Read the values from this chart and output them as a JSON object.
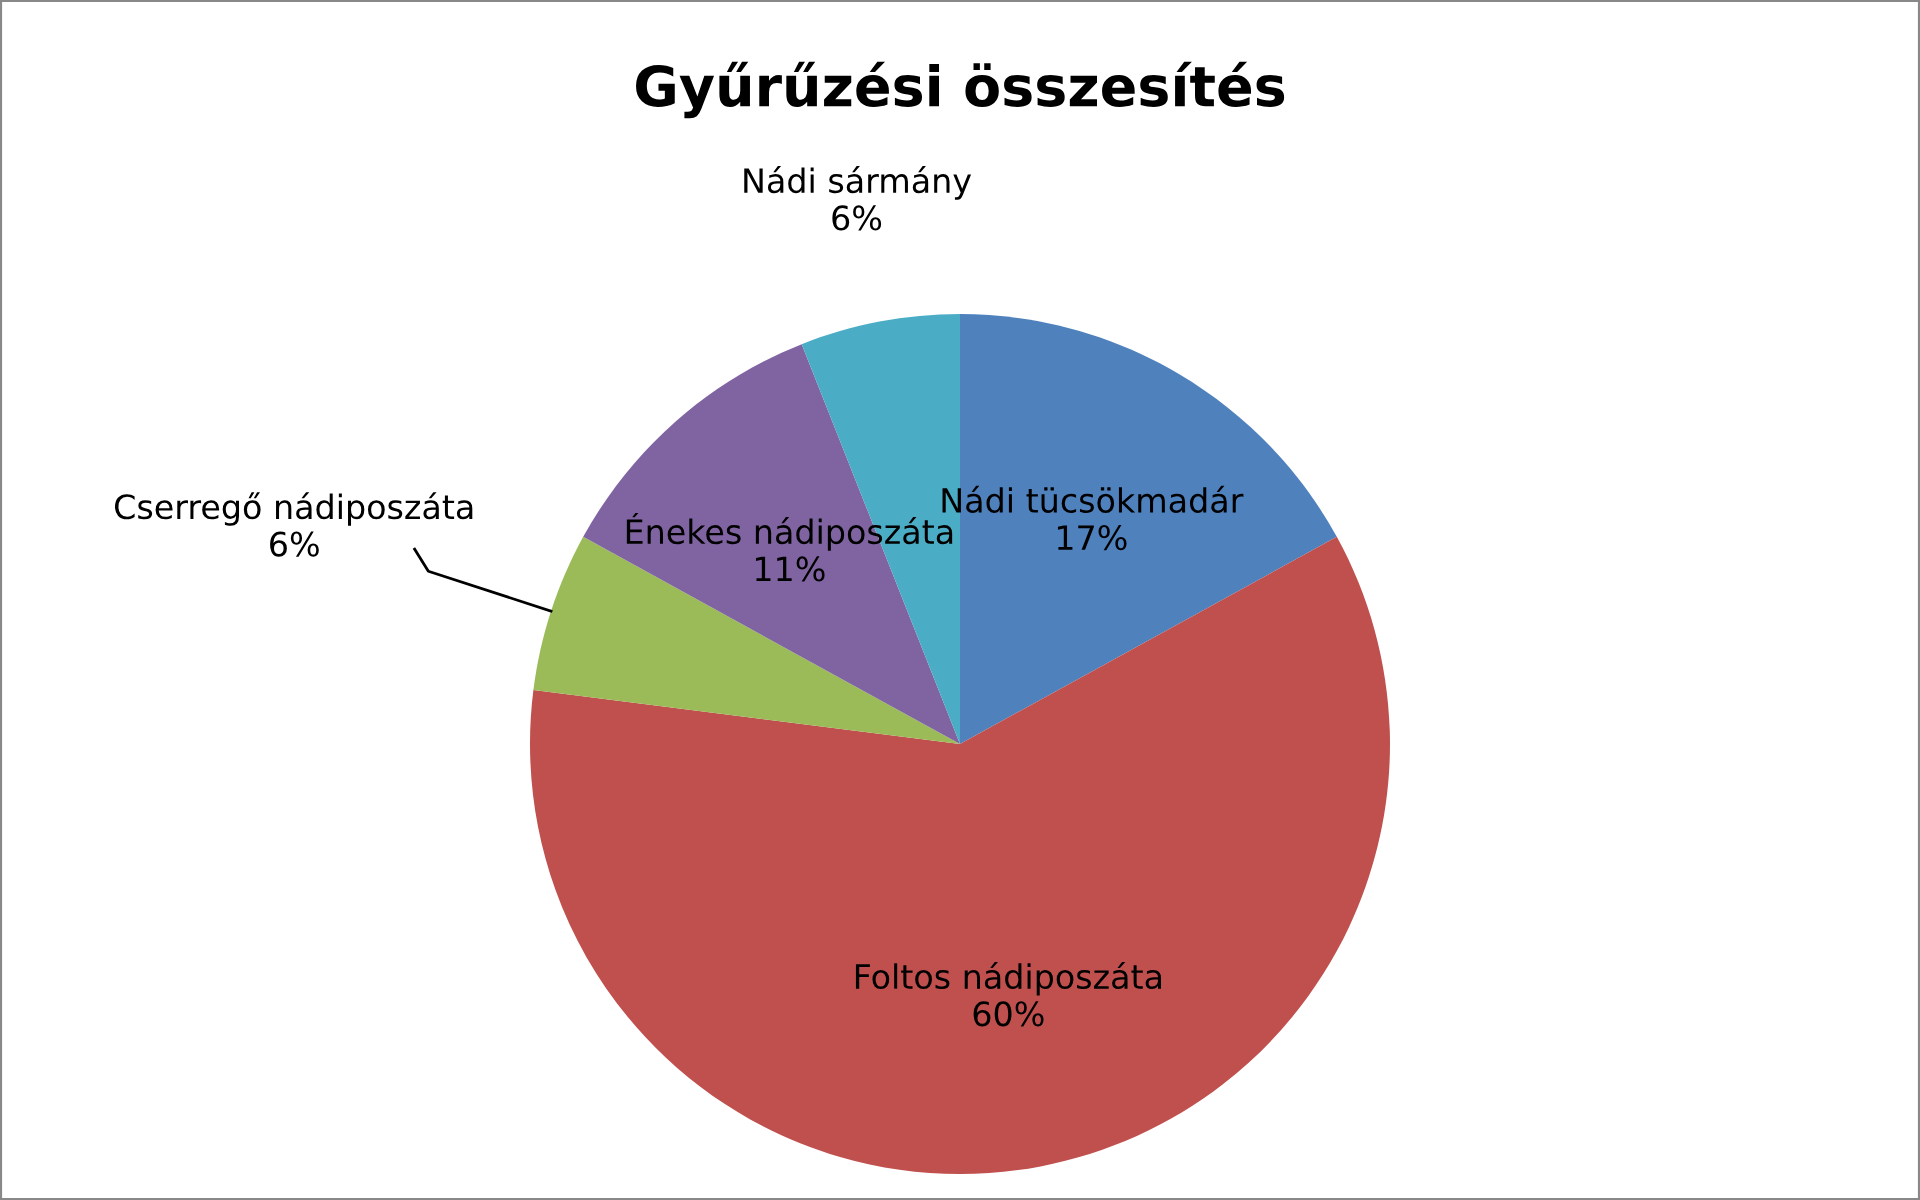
{
  "chart_data": {
    "type": "pie",
    "title": "Gyűrűzési összesítés",
    "categories": [
      "Nádi tücsökmadár",
      "Foltos nádiposzáta",
      "Cserregő nádiposzáta",
      "Énekes nádiposzáta",
      "Nádi sármány"
    ],
    "values": [
      17,
      60,
      6,
      11,
      6
    ],
    "value_labels": [
      "17%",
      "60%",
      "6%",
      "11%",
      "6%"
    ],
    "colors": [
      "#4f81bd",
      "#c0504d",
      "#9bbb59",
      "#8064a2",
      "#4bacc6"
    ],
    "legend": false
  }
}
